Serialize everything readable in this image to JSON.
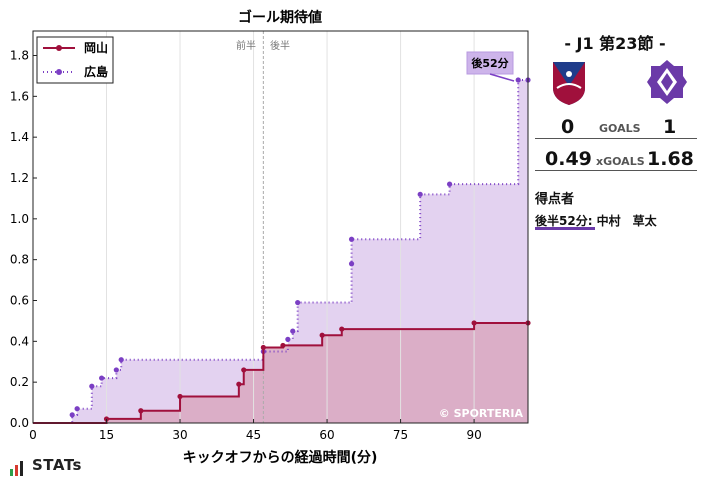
{
  "chart_data": {
    "type": "line",
    "title": "ゴール期待値",
    "xlabel": "キックオフからの経過時間(分)",
    "ylabel": "",
    "xlim": [
      0,
      101
    ],
    "ylim": [
      0,
      1.92
    ],
    "xticks": [
      0,
      15,
      30,
      45,
      60,
      75,
      90
    ],
    "yticks": [
      0.0,
      0.2,
      0.4,
      0.6,
      0.8,
      1.0,
      1.2,
      1.4,
      1.6,
      1.8
    ],
    "half_time_minute": 47,
    "half_labels": [
      "前半",
      "後半"
    ],
    "legend_position": "top-left",
    "watermark": "© SPORTERIA",
    "goal_annotation": {
      "label": "後52分",
      "team": "広島",
      "minute": 99,
      "value": 1.68
    },
    "series": [
      {
        "name": "岡山",
        "color": "#a0103c",
        "fill": "#d9a8c0",
        "style": "solid",
        "points": [
          [
            0,
            0
          ],
          [
            15,
            0.02
          ],
          [
            22,
            0.06
          ],
          [
            30,
            0.13
          ],
          [
            42,
            0.19
          ],
          [
            43,
            0.26
          ],
          [
            47,
            0.37
          ],
          [
            51,
            0.38
          ],
          [
            59,
            0.43
          ],
          [
            63,
            0.46
          ],
          [
            90,
            0.49
          ],
          [
            101,
            0.49
          ]
        ]
      },
      {
        "name": "広島",
        "color": "#7b3fc4",
        "fill": "#e3d2f0",
        "style": "dotted",
        "points": [
          [
            0,
            0
          ],
          [
            8,
            0.04
          ],
          [
            9,
            0.07
          ],
          [
            12,
            0.18
          ],
          [
            14,
            0.22
          ],
          [
            17,
            0.26
          ],
          [
            18,
            0.31
          ],
          [
            47,
            0.35
          ],
          [
            52,
            0.41
          ],
          [
            53,
            0.45
          ],
          [
            54,
            0.59
          ],
          [
            65,
            0.78
          ],
          [
            65,
            0.9
          ],
          [
            79,
            1.12
          ],
          [
            85,
            1.17
          ],
          [
            99,
            1.68
          ],
          [
            101,
            1.68
          ]
        ]
      }
    ]
  },
  "panel": {
    "match_title": "- J1 第23節 -",
    "home": {
      "name": "岡山",
      "goals": "0",
      "xgoals": "0.49",
      "color": "#a0103c"
    },
    "away": {
      "name": "広島",
      "goals": "1",
      "xgoals": "1.68",
      "color": "#6b3aa8"
    },
    "goals_label": "GOALS",
    "xgoals_label": "xGOALS",
    "scorers_heading": "得点者",
    "scorer_line": "後半52分: 中村　草太"
  },
  "brand": {
    "name": "STATs",
    "bar_colors": [
      "#2e9e4a",
      "#d63a2f",
      "#222222"
    ]
  }
}
